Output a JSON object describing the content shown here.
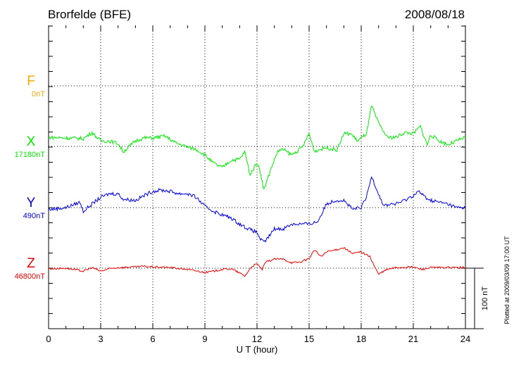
{
  "chart_data": {
    "type": "line",
    "title": "Brorfelde (BFE)",
    "date": "2008/08/18",
    "xlabel": "U T (hour)",
    "xlim": [
      0,
      24
    ],
    "xticks": [
      "0",
      "3",
      "6",
      "9",
      "12",
      "15",
      "18",
      "21",
      "24"
    ],
    "scale_bar_label": "100 nT",
    "plotted_note": "Plotted at 2009/03/09 17:00 UT",
    "grid": true,
    "series": [
      {
        "name": "F",
        "baseline_label": "0nT",
        "color": "#ffa500",
        "x": [],
        "values": []
      },
      {
        "name": "X",
        "baseline_label": "17180nT",
        "color": "#00ee00",
        "x": [
          0,
          1,
          2,
          2.5,
          3,
          3.5,
          4,
          4.3,
          5,
          5.5,
          6,
          6.7,
          7.3,
          8,
          8.5,
          9,
          9.5,
          10,
          10.5,
          11,
          11.3,
          11.6,
          12,
          12.2,
          12.4,
          12.8,
          13.2,
          13.5,
          14,
          14.6,
          15,
          15.3,
          16,
          16.6,
          17,
          17.4,
          17.8,
          18.3,
          18.6,
          19,
          19.5,
          20,
          20.5,
          21,
          21.4,
          21.8,
          22,
          22.5,
          23,
          23.5,
          24
        ],
        "values": [
          15,
          14,
          13,
          23,
          9,
          9,
          5,
          -9,
          9,
          14,
          14,
          17,
          6,
          -1,
          -5,
          -14,
          -28,
          -35,
          -23,
          -21,
          -9,
          -47,
          -26,
          -43,
          -72,
          -37,
          -8,
          -5,
          -14,
          -2,
          21,
          -8,
          -2,
          -6,
          21,
          21,
          9,
          21,
          67,
          38,
          15,
          15,
          23,
          21,
          33,
          3,
          19,
          9,
          3,
          9,
          15
        ]
      },
      {
        "name": "Y",
        "baseline_label": "490nT",
        "color": "#0000ee",
        "x": [
          0,
          1,
          1.8,
          2,
          2.5,
          3,
          3.5,
          4,
          4.3,
          5,
          5.5,
          6,
          6.5,
          7,
          7.5,
          8,
          8.5,
          9,
          9.5,
          10,
          10.5,
          11,
          11.5,
          12,
          12.2,
          12.4,
          12.7,
          13,
          13.5,
          14,
          14.5,
          15,
          15.5,
          16,
          16.5,
          17,
          17.5,
          18,
          18.3,
          18.6,
          19,
          19.3,
          19.7,
          20,
          20.5,
          21,
          21.3,
          21.7,
          22,
          23,
          23.5,
          24
        ],
        "values": [
          -3,
          0,
          9,
          -6,
          6,
          17,
          23,
          23,
          14,
          12,
          20,
          27,
          29,
          27,
          23,
          23,
          17,
          2,
          -6,
          -12,
          -17,
          -27,
          -35,
          -41,
          -52,
          -58,
          -47,
          -35,
          -35,
          -27,
          -27,
          -27,
          -23,
          6,
          12,
          12,
          -3,
          0,
          17,
          52,
          23,
          3,
          6,
          6,
          12,
          20,
          27,
          17,
          12,
          6,
          0,
          0
        ]
      },
      {
        "name": "Z",
        "baseline_label": "46800nT",
        "color": "#ee0000",
        "x": [
          0,
          1,
          2,
          2.5,
          3,
          3.5,
          4,
          5,
          5.5,
          6,
          7,
          8,
          9,
          9.5,
          10,
          10.5,
          11,
          11.3,
          11.7,
          12,
          12.3,
          12.5,
          13,
          13.5,
          14,
          14.5,
          15,
          15.3,
          15.7,
          16,
          16.5,
          17,
          17.5,
          18,
          18.5,
          18.8,
          19,
          19.5,
          20,
          21,
          21.5,
          22,
          23,
          24
        ],
        "values": [
          -1,
          0,
          -5,
          1,
          -5,
          -1,
          1,
          2,
          3,
          2,
          1,
          -2,
          -7,
          -5,
          -2,
          -1,
          -8,
          -13,
          3,
          7,
          -2,
          10,
          15,
          15,
          9,
          10,
          16,
          30,
          19,
          27,
          30,
          34,
          24,
          27,
          19,
          1,
          -10,
          -2,
          1,
          2,
          -2,
          1,
          1,
          1
        ]
      }
    ]
  }
}
